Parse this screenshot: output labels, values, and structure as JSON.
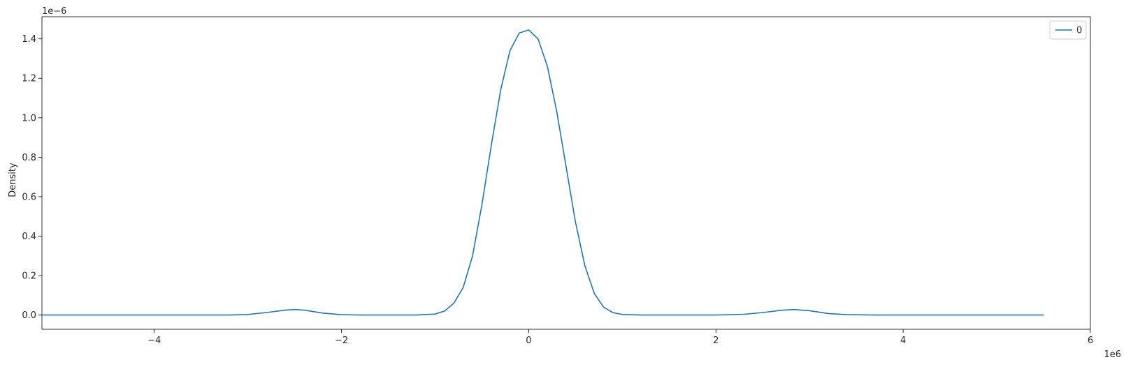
{
  "chart_data": {
    "type": "line",
    "title": "",
    "xlabel": "",
    "ylabel": "Density",
    "x_offset_label": "1e6",
    "y_offset_label": "1e−6",
    "xlim": [
      -5.2,
      6.0
    ],
    "ylim": [
      -0.072,
      1.512
    ],
    "x_ticks": [
      -4,
      -2,
      0,
      2,
      4,
      6
    ],
    "x_tick_labels": [
      "−4",
      "−2",
      "0",
      "2",
      "4",
      "6"
    ],
    "y_ticks": [
      0.0,
      0.2,
      0.4,
      0.6,
      0.8,
      1.0,
      1.2,
      1.4
    ],
    "y_tick_labels": [
      "0.0",
      "0.2",
      "0.4",
      "0.6",
      "0.8",
      "1.0",
      "1.2",
      "1.4"
    ],
    "grid": false,
    "legend_position": "top-right",
    "series": [
      {
        "name": "0",
        "color": "#1f77b4",
        "x": [
          -5.2,
          -3.5,
          -3.2,
          -3.0,
          -2.8,
          -2.6,
          -2.5,
          -2.4,
          -2.2,
          -2.0,
          -1.8,
          -1.5,
          -1.2,
          -1.0,
          -0.9,
          -0.8,
          -0.7,
          -0.6,
          -0.5,
          -0.4,
          -0.3,
          -0.2,
          -0.1,
          0.0,
          0.1,
          0.2,
          0.3,
          0.4,
          0.5,
          0.6,
          0.7,
          0.8,
          0.9,
          1.0,
          1.2,
          1.5,
          2.0,
          2.3,
          2.5,
          2.7,
          2.83,
          3.0,
          3.2,
          3.4,
          3.7,
          4.0,
          5.5
        ],
        "y": [
          0.0,
          0.0,
          0.0,
          0.003,
          0.013,
          0.025,
          0.028,
          0.025,
          0.01,
          0.002,
          0.0,
          0.0,
          0.0,
          0.005,
          0.02,
          0.06,
          0.14,
          0.3,
          0.56,
          0.86,
          1.14,
          1.34,
          1.43,
          1.445,
          1.4,
          1.26,
          1.03,
          0.75,
          0.47,
          0.25,
          0.11,
          0.04,
          0.012,
          0.003,
          0.0,
          0.0,
          0.0,
          0.004,
          0.013,
          0.024,
          0.028,
          0.022,
          0.008,
          0.002,
          0.0,
          0.0,
          0.0
        ]
      }
    ]
  }
}
